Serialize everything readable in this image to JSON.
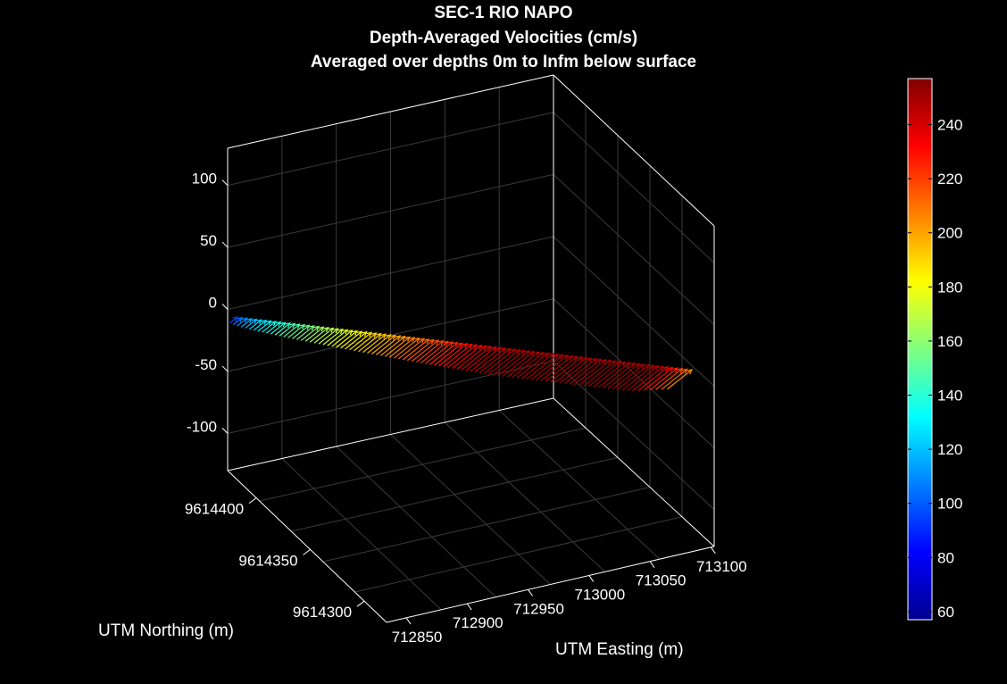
{
  "chart_data": {
    "type": "quiver3d",
    "title": [
      "SEC-1 RIO NAPO",
      "Depth-Averaged Velocities (cm/s)",
      "Averaged over depths 0m to Infm below surface"
    ],
    "xlabel": "UTM Easting (m)",
    "ylabel": "UTM Northing (m)",
    "zlabel": "",
    "x_ticks": [
      712850,
      712900,
      712950,
      713000,
      713050,
      713100
    ],
    "y_ticks": [
      9614300,
      9614350,
      9614400
    ],
    "z_ticks": [
      100,
      50,
      0,
      -50,
      -100
    ],
    "zlim": [
      -130,
      130
    ],
    "colorbar": {
      "colormap": "jet",
      "range": [
        57,
        257
      ],
      "ticks": [
        60,
        80,
        100,
        120,
        140,
        160,
        180,
        200,
        220,
        240
      ]
    },
    "background": "#000000",
    "grid": true,
    "series": [
      {
        "arrows": 96,
        "speed_start": 95,
        "speed_peak": 250,
        "speed_end": 205
      }
    ]
  }
}
